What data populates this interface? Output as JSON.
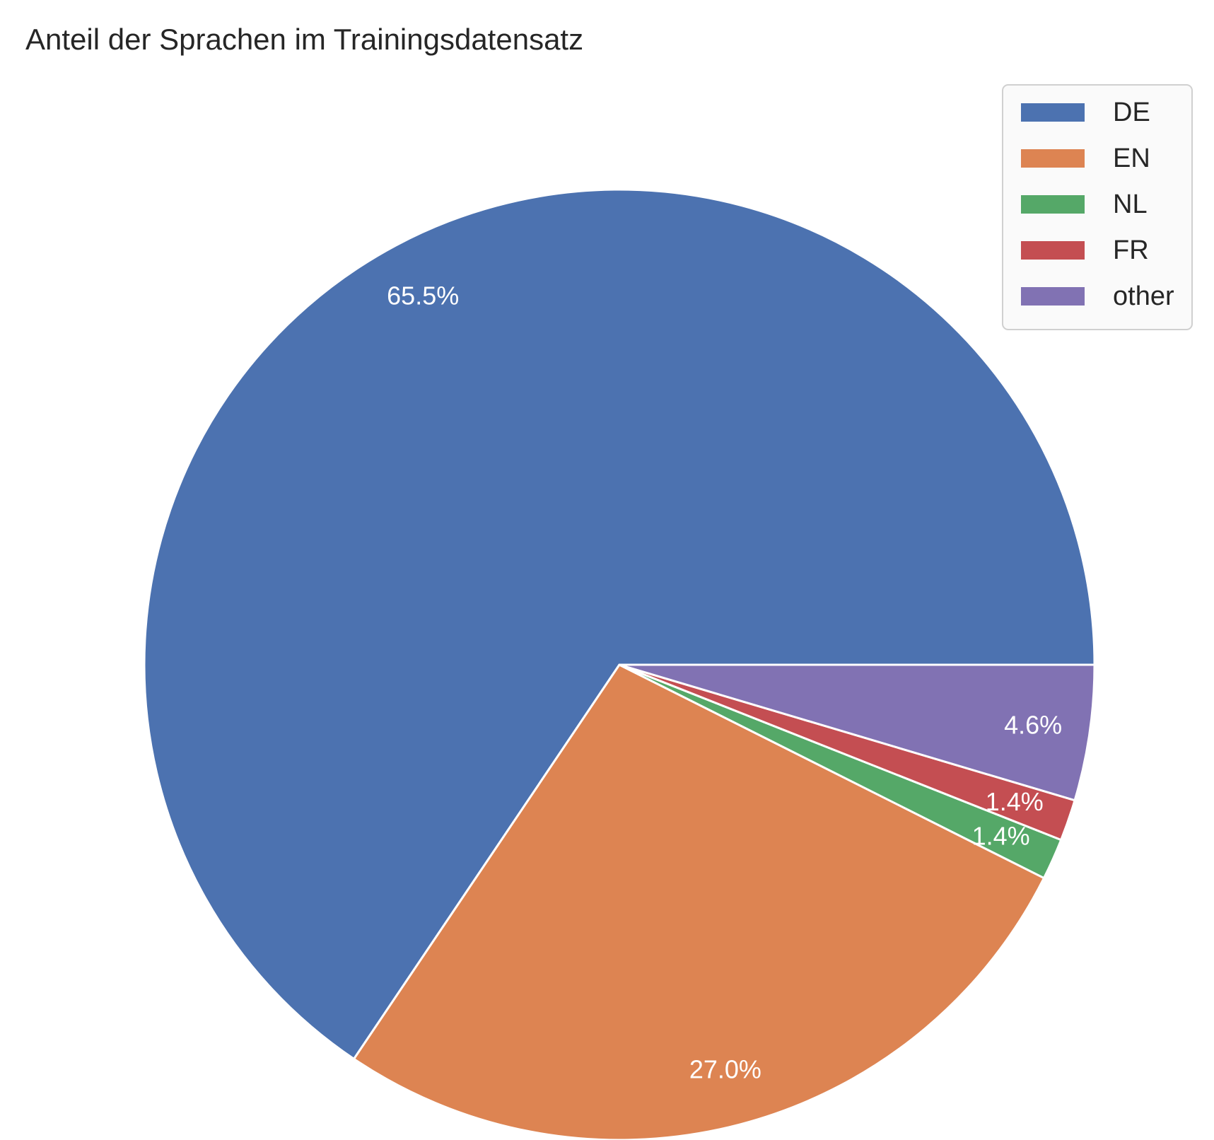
{
  "chart_data": {
    "type": "pie",
    "title": "Anteil der Sprachen im Trainingsdatensatz",
    "start_angle_deg": 0,
    "direction": "counterclockwise",
    "slices": [
      {
        "label": "DE",
        "value": 65.5,
        "pct_label": "65.5%",
        "color": "#4c72b0"
      },
      {
        "label": "EN",
        "value": 27.0,
        "pct_label": "27.0%",
        "color": "#dd8452"
      },
      {
        "label": "NL",
        "value": 1.4,
        "pct_label": "1.4%",
        "color": "#55a868"
      },
      {
        "label": "FR",
        "value": 1.4,
        "pct_label": "1.4%",
        "color": "#c44e52"
      },
      {
        "label": "other",
        "value": 4.6,
        "pct_label": "4.6%",
        "color": "#8172b3"
      }
    ],
    "legend_position": "top-right",
    "slice_edge_color": "#ffffff",
    "label_color": "#ffffff"
  }
}
